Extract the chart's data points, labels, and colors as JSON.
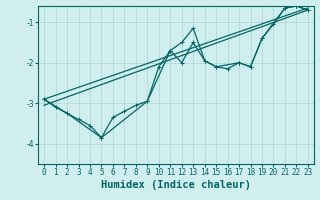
{
  "xlabel": "Humidex (Indice chaleur)",
  "ylabel": "",
  "bg_color": "#d1eeee",
  "grid_color": "#aed4d4",
  "line_color": "#006666",
  "xlim": [
    -0.5,
    23.5
  ],
  "ylim": [
    -4.5,
    -0.6
  ],
  "yticks": [
    -4,
    -3,
    -2,
    -1
  ],
  "xticks": [
    0,
    1,
    2,
    3,
    4,
    5,
    6,
    7,
    8,
    9,
    10,
    11,
    12,
    13,
    14,
    15,
    16,
    17,
    18,
    19,
    20,
    21,
    22,
    23
  ],
  "line1_x": [
    0,
    1,
    2,
    3,
    4,
    5,
    6,
    7,
    8,
    9,
    10,
    11,
    12,
    13,
    14,
    15,
    16,
    17,
    18,
    19,
    20,
    21,
    22,
    23
  ],
  "line1_y": [
    -2.9,
    -3.1,
    -3.25,
    -3.4,
    -3.55,
    -3.85,
    -3.35,
    -3.2,
    -3.05,
    -2.95,
    -2.1,
    -1.7,
    -1.5,
    -1.15,
    -1.95,
    -2.1,
    -2.15,
    -2.0,
    -2.1,
    -1.4,
    -1.05,
    -0.65,
    -0.6,
    -0.7
  ],
  "line2_x": [
    0,
    2,
    5,
    9,
    11,
    12,
    13,
    14,
    15,
    17,
    18,
    19,
    21,
    22,
    23
  ],
  "line2_y": [
    -2.9,
    -3.25,
    -3.85,
    -2.95,
    -1.7,
    -2.0,
    -1.5,
    -1.95,
    -2.1,
    -2.0,
    -2.1,
    -1.4,
    -0.65,
    -0.6,
    -0.7
  ],
  "line3_x": [
    0,
    23
  ],
  "line3_y": [
    -2.9,
    -0.65
  ],
  "line4_x": [
    0,
    23
  ],
  "line4_y": [
    -3.05,
    -0.7
  ],
  "marker_size": 3,
  "line_width": 0.9,
  "tick_fontsize": 5.5,
  "xlabel_fontsize": 7.5
}
